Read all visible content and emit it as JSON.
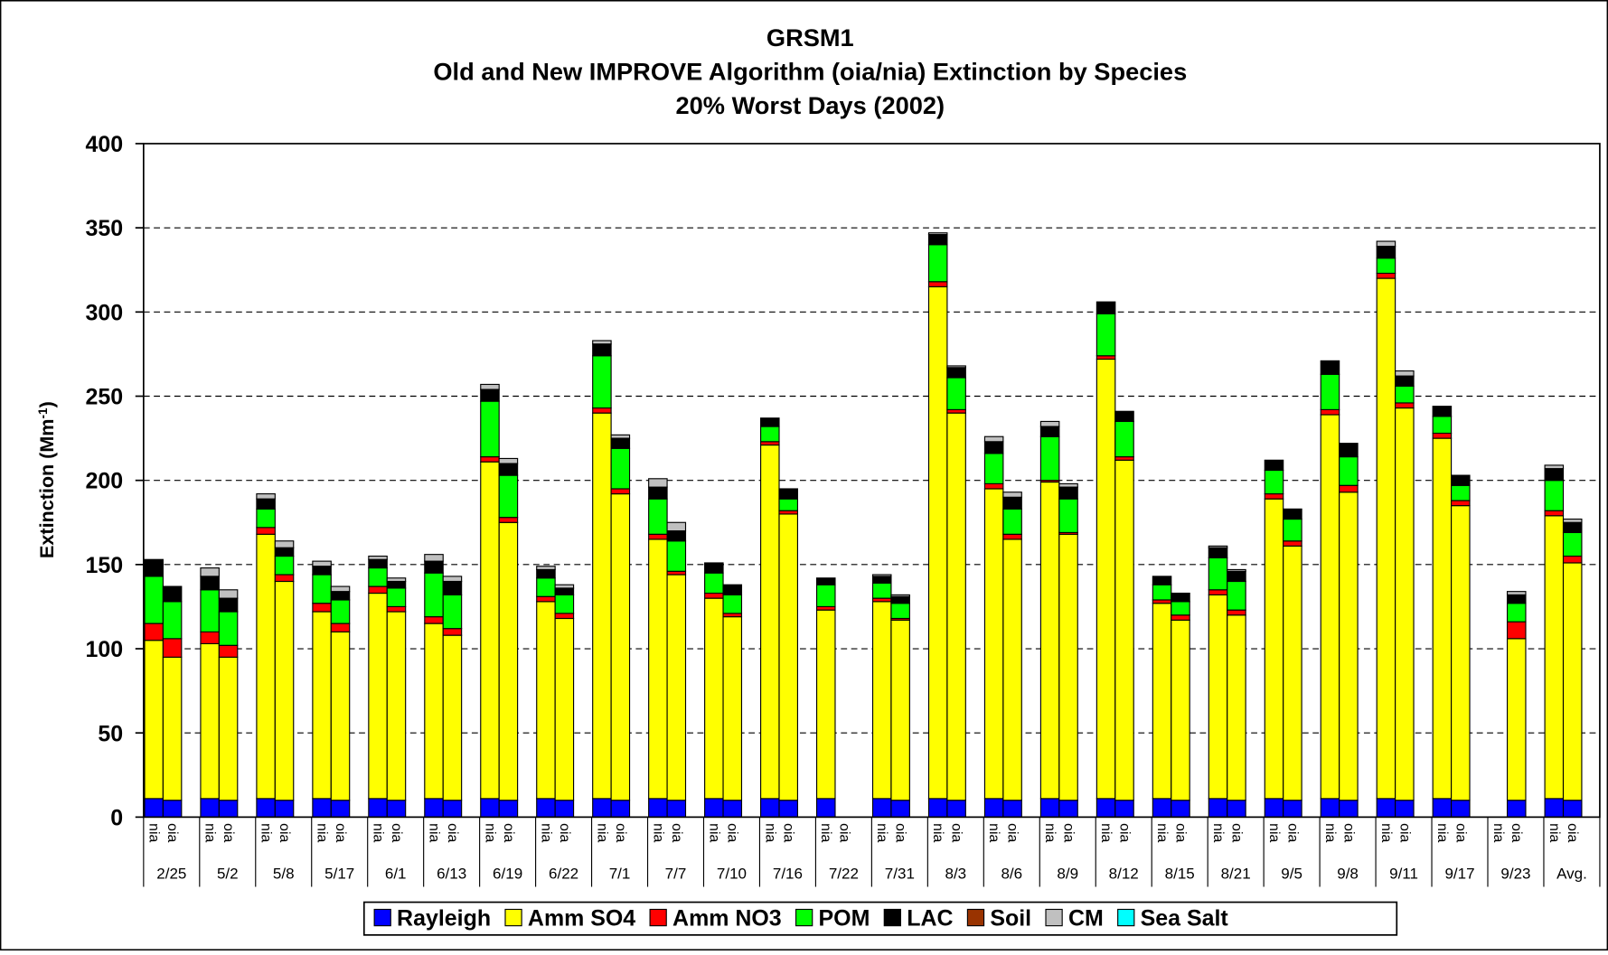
{
  "chart_data": {
    "type": "stacked-bar",
    "title": "GRSM1",
    "subtitle": [
      "Old and New IMPROVE Algorithm (oia/nia) Extinction by Species",
      "20% Worst Days (2002)"
    ],
    "y_label": [
      "Extinction (Mm",
      "-1",
      ")"
    ],
    "groups": [
      "2/25",
      "5/2",
      "5/8",
      "5/17",
      "6/1",
      "6/13",
      "6/19",
      "6/22",
      "7/1",
      "7/7",
      "7/10",
      "7/16",
      "7/22",
      "7/31",
      "8/3",
      "8/6",
      "8/9",
      "8/12",
      "8/15",
      "8/21",
      "9/5",
      "9/8",
      "9/11",
      "9/17",
      "9/23",
      "Avg."
    ],
    "categories": [
      "nia",
      "oia",
      "nia",
      "oia",
      "nia",
      "oia",
      "nia",
      "oia",
      "nia",
      "oia",
      "nia",
      "oia",
      "nia",
      "oia",
      "nia",
      "oia",
      "nia",
      "oia",
      "nia",
      "oia",
      "nia",
      "oia",
      "nia",
      "oia",
      "nia",
      "oia",
      "nia",
      "oia",
      "nia",
      "oia",
      "nia",
      "oia",
      "nia",
      "oia",
      "nia",
      "oia",
      "nia",
      "oia",
      "nia",
      "oia",
      "nia",
      "oia",
      "nia",
      "oia",
      "nia",
      "oia",
      "nia",
      "oia",
      "nia",
      "oia",
      "nia",
      "oia"
    ],
    "series": [
      {
        "name": "Rayleigh",
        "color": "#0000ff",
        "values": [
          11,
          10,
          11,
          10,
          11,
          10,
          11,
          10,
          11,
          10,
          11,
          10,
          11,
          10,
          11,
          10,
          11,
          10,
          11,
          10,
          11,
          10,
          11,
          10,
          11,
          null,
          11,
          10,
          11,
          10,
          11,
          10,
          11,
          10,
          11,
          10,
          11,
          10,
          11,
          10,
          11,
          10,
          11,
          10,
          11,
          10,
          11,
          10,
          null,
          10,
          11,
          10
        ]
      },
      {
        "name": "Amm SO4",
        "color": "#ffff00",
        "values": [
          94,
          85,
          92,
          85,
          157,
          130,
          111,
          100,
          122,
          112,
          104,
          98,
          200,
          165,
          117,
          108,
          229,
          182,
          154,
          134,
          119,
          109,
          210,
          170,
          112,
          null,
          117,
          107,
          304,
          230,
          184,
          155,
          188,
          158,
          261,
          202,
          116,
          107,
          121,
          110,
          178,
          151,
          228,
          183,
          309,
          233,
          214,
          175,
          null,
          96,
          168,
          141
        ]
      },
      {
        "name": "Amm NO3",
        "color": "#ff0000",
        "values": [
          10,
          11,
          7,
          7,
          4,
          4,
          5,
          5,
          4,
          3,
          4,
          4,
          3,
          3,
          3,
          3,
          3,
          3,
          3,
          2,
          3,
          2,
          2,
          2,
          2,
          null,
          2,
          1,
          3,
          2,
          3,
          3,
          1,
          1,
          2,
          2,
          2,
          3,
          3,
          3,
          3,
          3,
          3,
          4,
          3,
          3,
          3,
          3,
          null,
          10,
          3,
          4
        ]
      },
      {
        "name": "POM",
        "color": "#00ff00",
        "values": [
          28,
          22,
          25,
          20,
          11,
          11,
          17,
          14,
          11,
          11,
          26,
          20,
          33,
          25,
          11,
          11,
          31,
          24,
          21,
          18,
          12,
          11,
          9,
          7,
          13,
          null,
          9,
          9,
          22,
          19,
          18,
          15,
          26,
          20,
          25,
          21,
          9,
          8,
          19,
          17,
          14,
          13,
          21,
          17,
          9,
          10,
          10,
          9,
          null,
          11,
          18,
          14
        ]
      },
      {
        "name": "LAC",
        "color": "#000000",
        "values": [
          10,
          9,
          8,
          8,
          6,
          5,
          5,
          5,
          5,
          4,
          7,
          8,
          7,
          7,
          5,
          4,
          7,
          6,
          7,
          6,
          6,
          6,
          5,
          6,
          4,
          null,
          4,
          4,
          6,
          6,
          7,
          7,
          6,
          7,
          7,
          6,
          5,
          5,
          6,
          6,
          6,
          6,
          8,
          8,
          7,
          6,
          6,
          6,
          null,
          5,
          7,
          6
        ]
      },
      {
        "name": "Soil",
        "color": "#993300",
        "values": [
          0,
          0,
          0,
          0,
          0,
          0,
          0,
          0,
          0,
          0,
          0,
          0,
          0,
          0,
          0,
          0,
          0,
          0,
          0,
          0,
          0,
          0,
          0,
          0,
          0,
          null,
          0,
          0,
          0,
          0,
          0,
          0,
          0,
          0,
          0,
          0,
          0,
          0,
          0,
          0,
          0,
          0,
          0,
          0,
          0,
          0,
          0,
          0,
          null,
          0,
          0,
          0
        ]
      },
      {
        "name": "CM",
        "color": "#c0c0c0",
        "values": [
          0,
          0,
          5,
          5,
          3,
          4,
          3,
          3,
          2,
          2,
          4,
          3,
          3,
          3,
          2,
          2,
          2,
          2,
          5,
          5,
          0,
          0,
          0,
          0,
          0,
          null,
          1,
          1,
          1,
          1,
          3,
          3,
          3,
          2,
          0,
          0,
          0,
          0,
          1,
          1,
          0,
          0,
          0,
          0,
          3,
          3,
          0,
          0,
          null,
          2,
          2,
          2
        ]
      },
      {
        "name": "Sea Salt",
        "color": "#00ffff",
        "values": [
          0,
          0,
          0,
          0,
          0,
          0,
          0,
          0,
          0,
          0,
          0,
          0,
          0,
          0,
          0,
          0,
          0,
          0,
          0,
          0,
          0,
          0,
          0,
          0,
          0,
          null,
          0,
          0,
          0,
          0,
          0,
          0,
          0,
          0,
          0,
          0,
          0,
          0,
          0,
          0,
          0,
          0,
          0,
          0,
          0,
          0,
          0,
          0,
          null,
          0,
          0,
          0
        ]
      }
    ],
    "ylim": [
      0,
      400
    ],
    "yticks": [
      0,
      50,
      100,
      150,
      200,
      250,
      300,
      350,
      400
    ],
    "grid": true
  }
}
